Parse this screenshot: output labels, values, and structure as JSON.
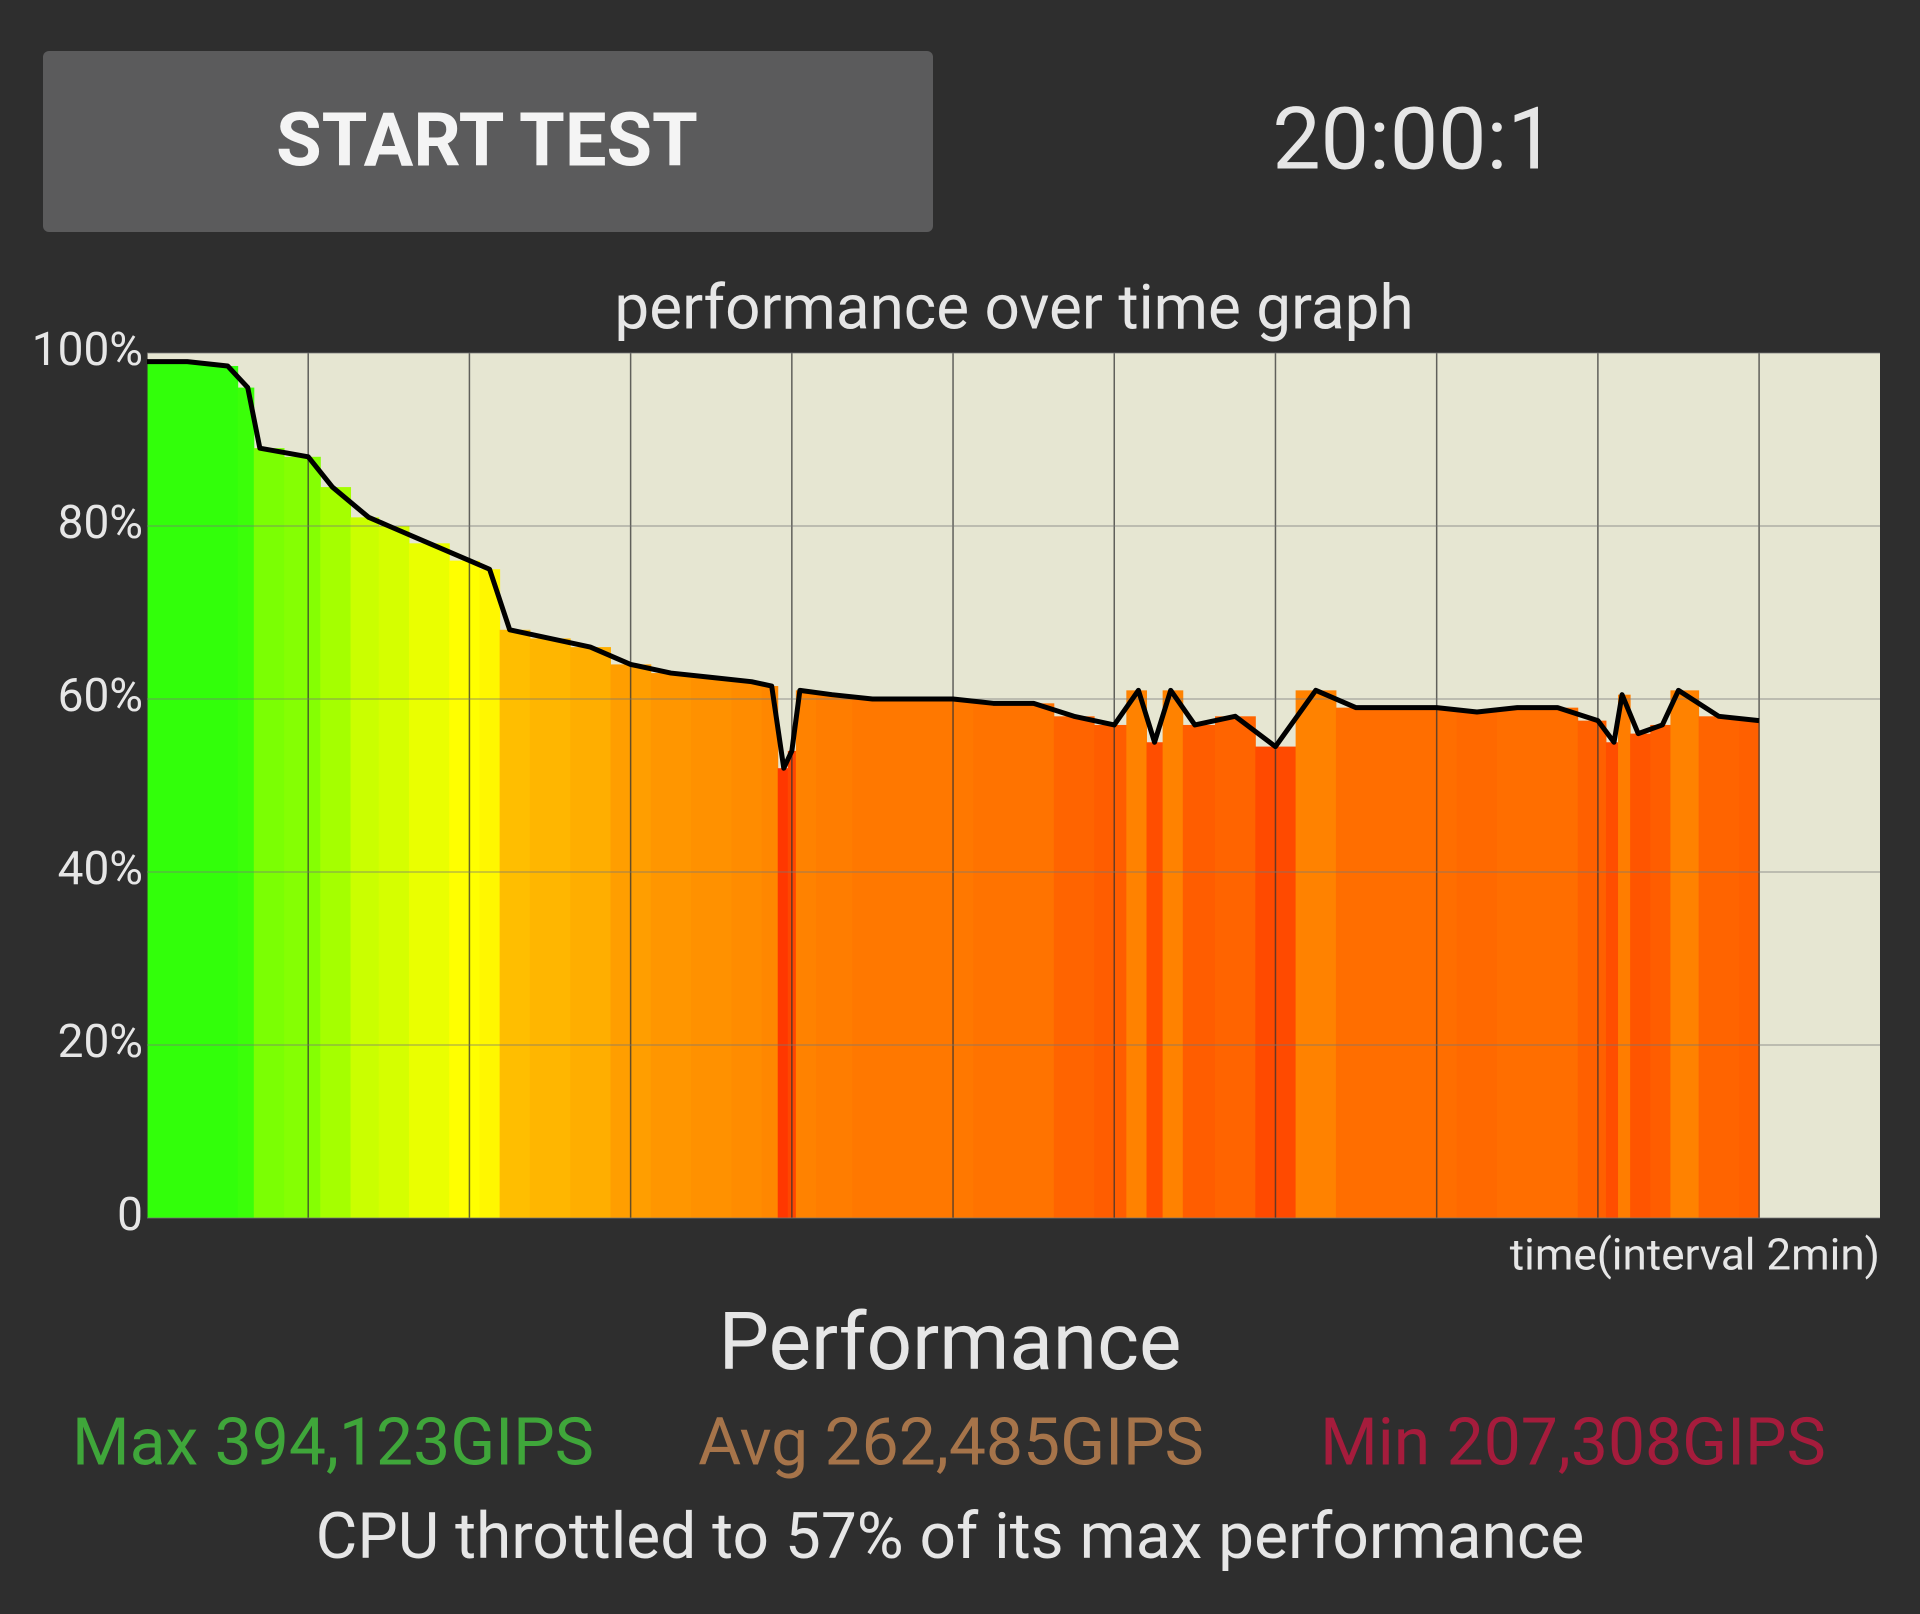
{
  "button": {
    "label": "START TEST"
  },
  "timer": "20:00:1",
  "chart_data": {
    "type": "line",
    "title": "performance over time graph",
    "x_label": "time(interval 2min)",
    "x": [
      0,
      0.5,
      1.0,
      1.25,
      1.4,
      2.0,
      2.3,
      2.75,
      3.0,
      3.5,
      4.0,
      4.25,
      4.5,
      5.0,
      5.5,
      6.0,
      6.5,
      7.0,
      7.5,
      7.75,
      7.9,
      8.0,
      8.1,
      8.5,
      9.0,
      9.5,
      10.0,
      10.5,
      11.0,
      11.5,
      12.0,
      12.3,
      12.5,
      12.7,
      13.0,
      13.5,
      14.0,
      14.5,
      15.0,
      15.5,
      16.0,
      16.5,
      17.0,
      17.5,
      18.0,
      18.2,
      18.3,
      18.5,
      18.8,
      19.0,
      19.5,
      20.0
    ],
    "values": [
      99,
      99,
      98.5,
      96,
      89,
      88,
      84.5,
      81,
      80,
      78,
      76,
      75,
      68,
      67,
      66,
      64,
      63,
      62.5,
      62,
      61.5,
      52,
      54,
      61,
      60.5,
      60,
      60,
      60,
      59.5,
      59.5,
      58,
      57,
      61,
      55,
      61,
      57,
      58,
      54.5,
      61,
      59,
      59,
      59,
      58.5,
      59,
      59,
      57.5,
      55,
      60.5,
      56,
      57,
      61,
      58,
      57.5
    ],
    "line_color": "#000000",
    "background": "#e6e6d2",
    "xlim": [
      0,
      21.5
    ],
    "xticks": [
      0,
      2,
      4,
      6,
      8,
      10,
      12,
      14,
      16,
      18,
      20
    ],
    "ylim": [
      0,
      100
    ],
    "yticks": [
      0,
      {
        "value": 20,
        "label": "20%"
      },
      {
        "value": 40,
        "label": "40%"
      },
      {
        "value": 60,
        "label": "60%"
      },
      {
        "value": 80,
        "label": "80%"
      },
      {
        "value": 100,
        "label": "100%"
      }
    ],
    "grid": true
  },
  "summary": {
    "title": "Performance",
    "max": "Max 394,123GIPS",
    "avg": "Avg 262,485GIPS",
    "min": "Min 207,308GIPS",
    "note": "CPU throttled to 57% of its max performance"
  }
}
